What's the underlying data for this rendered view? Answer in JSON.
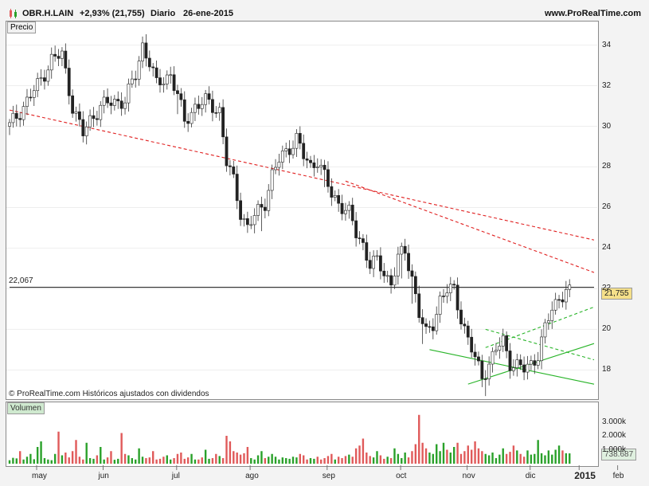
{
  "header": {
    "symbol": "OBR.H.LAIN",
    "change": "+2,93% (21,755)",
    "period": "Diario",
    "date": "26-ene-2015",
    "site": "www.ProRealTime.com"
  },
  "price_panel": {
    "label": "Precio",
    "hline_label": "22,067",
    "last_price": "21,755",
    "footer": "© ProRealTime.com  Históricos ajustados con dividendos"
  },
  "volume_panel": {
    "label": "Volumen",
    "last_volume": "738.687"
  },
  "colors": {
    "up": "#2aa12a",
    "down": "#e05a5a",
    "resistance": "#e02020",
    "support": "#28b428",
    "last_price_bg": "#f5e08a",
    "last_vol_bg": "#dff0df"
  },
  "chart_data": [
    {
      "type": "candlestick",
      "title": "Precio",
      "ylim": [
        16.6,
        35.2
      ],
      "yticks": [
        "18",
        "20",
        "22",
        "24",
        "26",
        "28",
        "30",
        "32",
        "34"
      ],
      "xticks": [
        "may",
        "jun",
        "jul",
        "ago",
        "sep",
        "oct",
        "nov",
        "dic",
        "2015",
        "feb"
      ],
      "series": [
        {
          "name": "OBR.H.LAIN",
          "close_path": [
            [
              0,
              30.0
            ],
            [
              4,
              31.0
            ],
            [
              8,
              32.0
            ],
            [
              12,
              33.3
            ],
            [
              15,
              33.5
            ],
            [
              18,
              31.0
            ],
            [
              21,
              29.6
            ],
            [
              23,
              30.3
            ],
            [
              26,
              31.0
            ],
            [
              30,
              31.2
            ],
            [
              33,
              31.3
            ],
            [
              36,
              32.5
            ],
            [
              38,
              34.0
            ],
            [
              40,
              33.2
            ],
            [
              42,
              32.0
            ],
            [
              46,
              32.6
            ],
            [
              48,
              31.5
            ],
            [
              50,
              30.2
            ],
            [
              53,
              31.0
            ],
            [
              56,
              31.2
            ],
            [
              60,
              30.8
            ],
            [
              62,
              28.2
            ],
            [
              64,
              27.3
            ],
            [
              66,
              25.8
            ],
            [
              68,
              25.0
            ],
            [
              71,
              25.8
            ],
            [
              73,
              26.3
            ],
            [
              75,
              27.6
            ],
            [
              77,
              28.3
            ],
            [
              80,
              29.0
            ],
            [
              82,
              29.4
            ],
            [
              84,
              28.5
            ],
            [
              86,
              28.0
            ],
            [
              88,
              28.4
            ],
            [
              90,
              27.5
            ],
            [
              92,
              26.6
            ],
            [
              95,
              26.1
            ],
            [
              97,
              25.7
            ],
            [
              99,
              24.7
            ],
            [
              101,
              24.2
            ],
            [
              103,
              23.2
            ],
            [
              105,
              23.3
            ],
            [
              107,
              22.8
            ],
            [
              109,
              22.3
            ],
            [
              111,
              23.5
            ],
            [
              113,
              23.8
            ],
            [
              115,
              22.6
            ],
            [
              117,
              20.8
            ],
            [
              119,
              19.7
            ],
            [
              121,
              20.3
            ],
            [
              123,
              21.5
            ],
            [
              125,
              21.9
            ],
            [
              127,
              21.9
            ],
            [
              129,
              20.6
            ],
            [
              131,
              19.5
            ],
            [
              133,
              18.5
            ],
            [
              135,
              17.7
            ],
            [
              137,
              18.3
            ],
            [
              139,
              19.0
            ],
            [
              141,
              19.4
            ],
            [
              143,
              18.4
            ],
            [
              145,
              18.2
            ],
            [
              147,
              18.0
            ],
            [
              149,
              18.3
            ],
            [
              151,
              18.8
            ],
            [
              153,
              20.0
            ],
            [
              155,
              21.0
            ],
            [
              157,
              21.6
            ],
            [
              159,
              21.9
            ],
            [
              160,
              21.755
            ]
          ]
        }
      ],
      "lines": [
        {
          "name": "resistance_upper",
          "style": "dashed",
          "from": [
            0,
            30.8
          ],
          "to": [
            167,
            24.4
          ]
        },
        {
          "name": "resistance_lower",
          "style": "dashed",
          "from": [
            96,
            27.3
          ],
          "to": [
            167,
            22.8
          ]
        },
        {
          "name": "support_1",
          "style": "solid",
          "from": [
            120,
            19.0
          ],
          "to": [
            167,
            17.3
          ]
        },
        {
          "name": "support_2",
          "style": "solid",
          "from": [
            131,
            17.3
          ],
          "to": [
            167,
            19.3
          ]
        },
        {
          "name": "channel_upper",
          "style": "dashed",
          "from": [
            136,
            19.1
          ],
          "to": [
            167,
            21.1
          ]
        },
        {
          "name": "channel_lower",
          "style": "dashed",
          "from": [
            136,
            20.0
          ],
          "to": [
            167,
            18.5
          ]
        },
        {
          "name": "reference",
          "style": "solid",
          "from": [
            0,
            22.067
          ],
          "to": [
            167,
            22.067
          ]
        }
      ]
    },
    {
      "type": "bar",
      "title": "Volumen",
      "ylim": [
        0,
        4400
      ],
      "yticks": [
        "1.000k",
        "2.000k",
        "3.000k"
      ],
      "values": [
        250,
        420,
        380,
        900,
        300,
        500,
        700,
        320,
        1200,
        1600,
        400,
        300,
        250,
        700,
        2300,
        600,
        800,
        450,
        900,
        1700,
        500,
        300,
        1500,
        400,
        350,
        600,
        1200,
        300,
        450,
        900,
        280,
        350,
        2200,
        700,
        600,
        400,
        300,
        1100,
        500,
        400,
        450,
        900,
        300,
        350,
        500,
        600,
        300,
        400,
        700,
        800,
        350,
        450,
        700,
        300,
        300,
        450,
        1000,
        350,
        400,
        700,
        550,
        400,
        2000,
        1600,
        900,
        800,
        650,
        750,
        1200,
        400,
        300,
        600,
        900,
        400,
        500,
        700,
        500,
        300,
        450,
        400,
        350,
        500,
        450,
        700,
        600,
        300,
        400,
        350,
        500,
        300,
        400,
        550,
        700,
        300,
        500,
        400,
        550,
        650,
        500,
        1100,
        1300,
        1800,
        800,
        550,
        450,
        900,
        600,
        350,
        500,
        400,
        1100,
        700,
        400,
        800,
        450,
        900,
        1400,
        3500,
        1500,
        1100,
        800,
        700,
        1400,
        900,
        1500,
        1000,
        800,
        1200,
        1500,
        700,
        900,
        1300,
        1000,
        1600,
        1100,
        900,
        700,
        600,
        800,
        400,
        650,
        1100,
        700,
        850,
        1300,
        950,
        700,
        500,
        950,
        650,
        700,
        1700,
        750,
        600,
        950,
        650,
        1000,
        1300,
        950,
        750,
        740
      ]
    }
  ]
}
